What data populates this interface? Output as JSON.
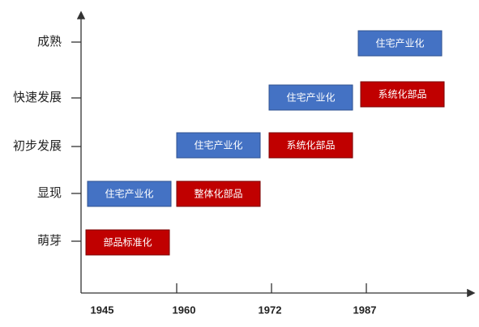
{
  "y_axis": {
    "labels": [
      "成熟",
      "快速发展",
      "初步发展",
      "显现",
      "萌芽"
    ]
  },
  "x_axis": {
    "labels": [
      "1945",
      "1960",
      "1972",
      "1987"
    ]
  },
  "boxes": [
    "住宅产业化",
    "住宅产业化",
    "系统化部品",
    "住宅产业化",
    "系统化部品",
    "住宅产业化",
    "整体化部品",
    "部品标准化"
  ]
}
